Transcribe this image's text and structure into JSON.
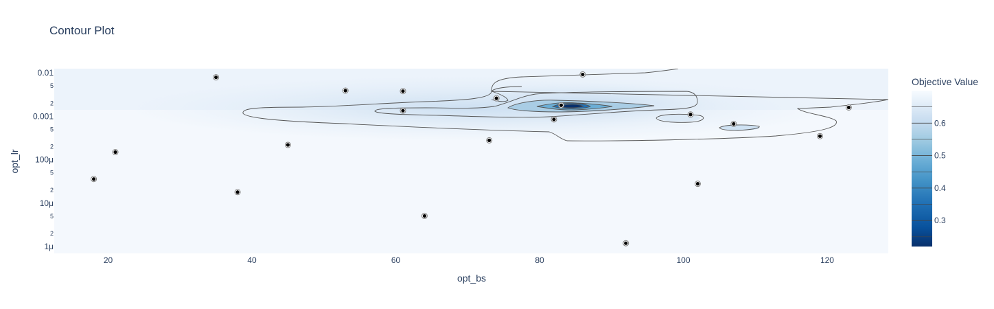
{
  "chart_data": {
    "type": "contour",
    "title": "Contour Plot",
    "xlabel": "opt_bs",
    "ylabel": "opt_lr",
    "xlim": [
      12.5,
      128.5
    ],
    "ylim": [
      7e-07,
      0.0125
    ],
    "y_scale": "log",
    "x_ticks": [
      20,
      40,
      60,
      80,
      100,
      120
    ],
    "x_tick_labels": [
      "20",
      "40",
      "60",
      "80",
      "100",
      "120"
    ],
    "y_major_ticks": [
      1e-06,
      1e-05,
      0.0001,
      0.001,
      0.01
    ],
    "y_major_labels": [
      "1μ",
      "10μ",
      "100μ",
      "0.001",
      "0.01"
    ],
    "y_minor_ticks": [
      2e-06,
      5e-06,
      2e-05,
      5e-05,
      0.0002,
      0.0005,
      0.002,
      0.005
    ],
    "y_minor_labels": [
      "2",
      "5",
      "2",
      "5",
      "2",
      "5",
      "2",
      "5"
    ],
    "colorbar": {
      "title": "Objective Value",
      "ticks": [
        0.3,
        0.4,
        0.5,
        0.6
      ],
      "tick_labels": [
        "0.3",
        "0.4",
        "0.5",
        "0.6"
      ],
      "range": [
        0.22,
        0.7
      ],
      "colorscale": [
        "#08306b",
        "#08519c",
        "#2171b5",
        "#4292c6",
        "#6baed6",
        "#9ecae1",
        "#c6dbef",
        "#deebf7",
        "#f7fbff"
      ]
    },
    "points": [
      {
        "x": 18,
        "y": 3.6e-05
      },
      {
        "x": 21,
        "y": 0.00015
      },
      {
        "x": 35,
        "y": 0.0079
      },
      {
        "x": 38,
        "y": 1.8e-05
      },
      {
        "x": 45,
        "y": 0.00022
      },
      {
        "x": 53,
        "y": 0.0039
      },
      {
        "x": 61,
        "y": 0.0038
      },
      {
        "x": 61,
        "y": 0.00135
      },
      {
        "x": 64,
        "y": 5.1e-06
      },
      {
        "x": 73,
        "y": 0.00028
      },
      {
        "x": 74,
        "y": 0.0026
      },
      {
        "x": 82,
        "y": 0.00085
      },
      {
        "x": 83,
        "y": 0.0018
      },
      {
        "x": 86,
        "y": 0.0092
      },
      {
        "x": 92,
        "y": 1.2e-06
      },
      {
        "x": 101,
        "y": 0.0011
      },
      {
        "x": 102,
        "y": 2.8e-05
      },
      {
        "x": 107,
        "y": 0.00067
      },
      {
        "x": 119,
        "y": 0.00035
      },
      {
        "x": 123,
        "y": 0.0016
      }
    ]
  }
}
